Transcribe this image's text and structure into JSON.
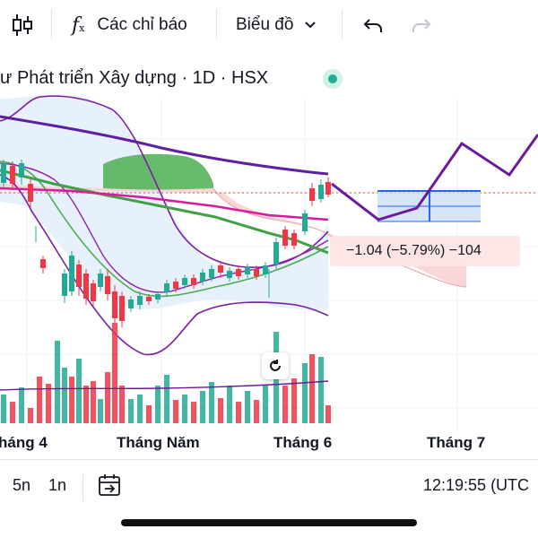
{
  "toolbar": {
    "indicators_label": "Các chỉ báo",
    "chart_type_label": "Biểu đồ"
  },
  "chart": {
    "title": "ư Phát triển Xây dựng · 1D · HSX",
    "tooltip": "−1.04 (−5.79%) −104",
    "x_axis_labels": [
      "háng 4",
      "Tháng Năm",
      "Tháng 6",
      "Tháng 7"
    ],
    "colors": {
      "up": "#22ab94",
      "down": "#f23645",
      "ichimoku_cloud_up": "#4caf50",
      "ichimoku_cloud_down": "#f8c9c9",
      "bollinger_fill": "#e3eefa",
      "long_ma": "#6a1b9a",
      "projection": "#7b2cbf"
    }
  },
  "bottom_bar": {
    "range_5n": "5n",
    "range_1n": "1n",
    "clock": "12:19:55 (UTC"
  }
}
